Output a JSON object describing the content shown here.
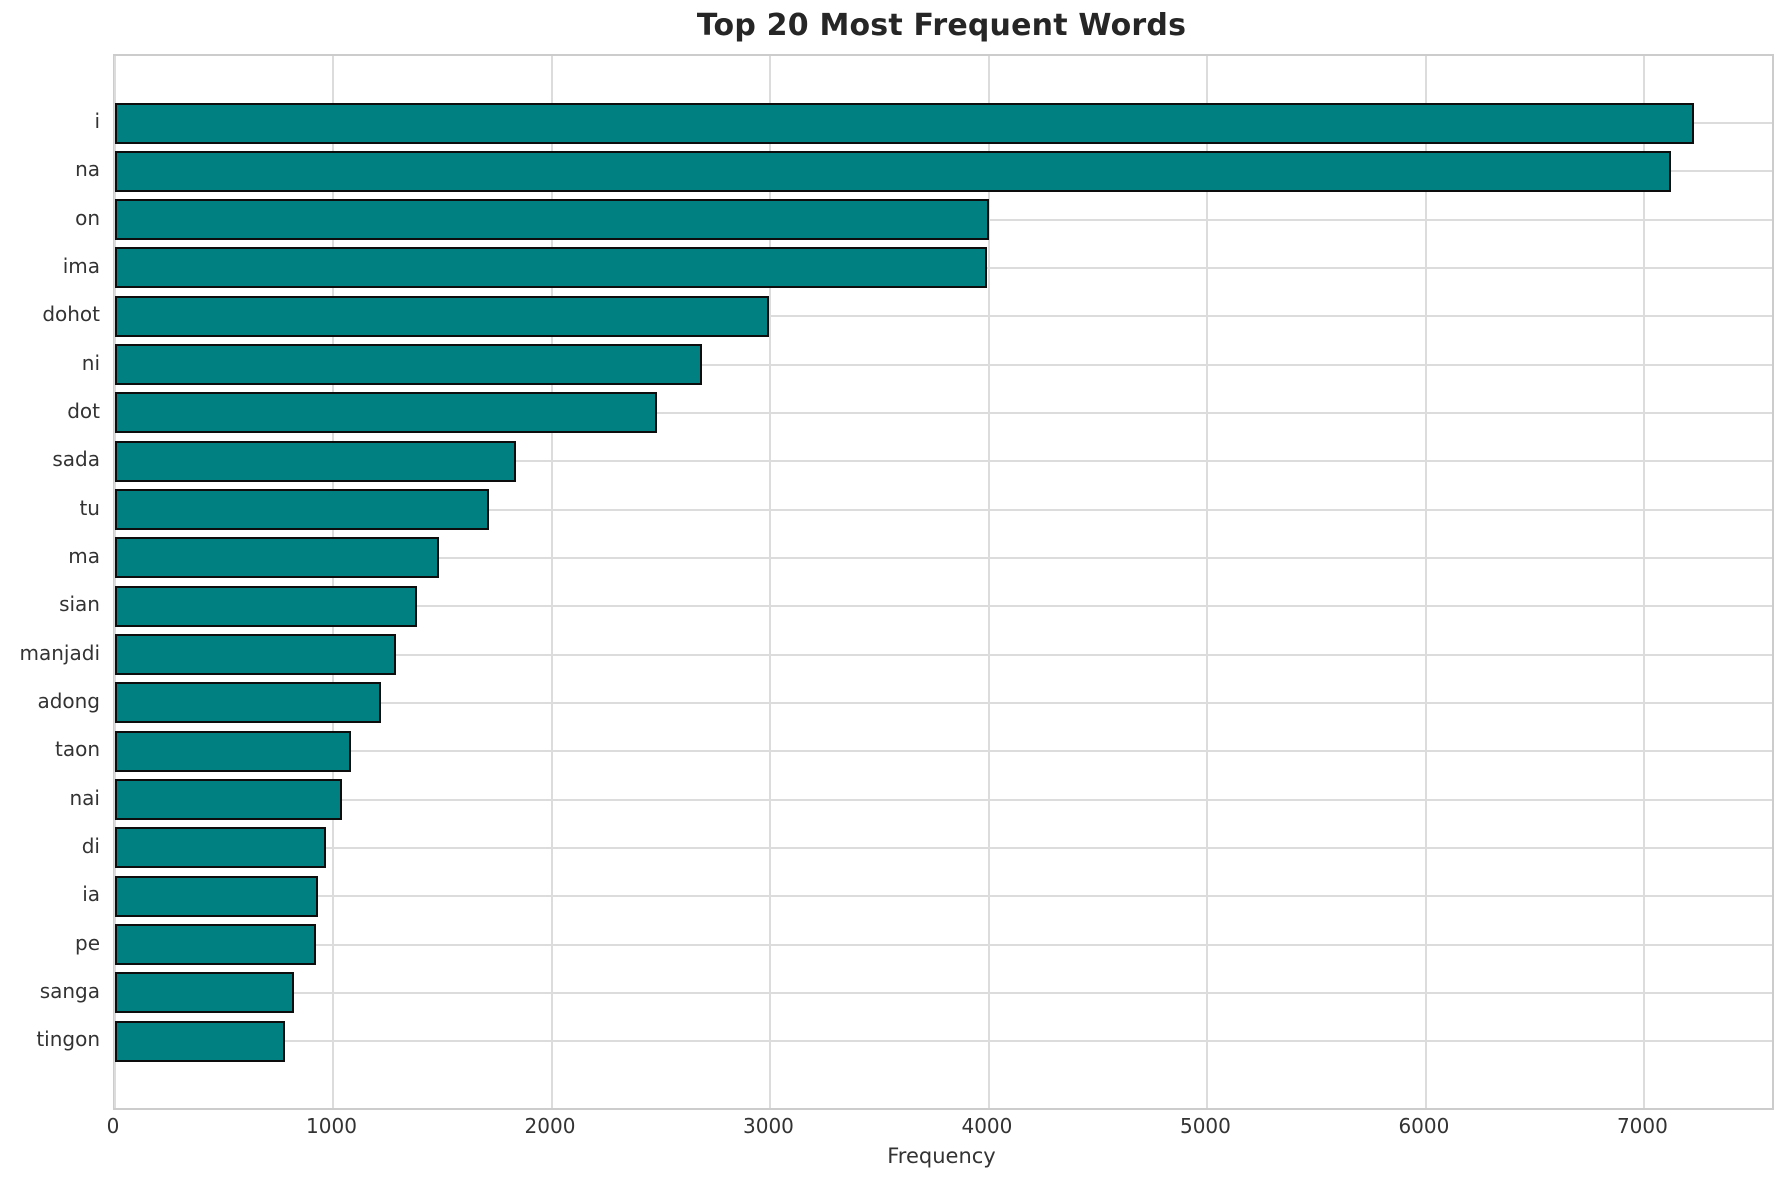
{
  "title": "Top 20 Most Frequent Words",
  "colors": {
    "bar_fill": "#008080",
    "bar_edge": "#0d0d0d",
    "grid": "#dcdcdc",
    "spine": "#cccccc",
    "title_text": "#262626",
    "tick_text": "#333333",
    "background": "#ffffff"
  },
  "chart_data": {
    "type": "bar",
    "orientation": "horizontal",
    "title": "Top 20 Most Frequent Words",
    "xlabel": "Frequency",
    "ylabel": "",
    "categories": [
      "i",
      "na",
      "on",
      "ima",
      "dohot",
      "ni",
      "dot",
      "sada",
      "tu",
      "ma",
      "sian",
      "manjadi",
      "adong",
      "taon",
      "nai",
      "di",
      "ia",
      "pe",
      "sanga",
      "tingon"
    ],
    "values": [
      7225,
      7120,
      4000,
      3990,
      2995,
      2685,
      2480,
      1835,
      1712,
      1485,
      1382,
      1286,
      1216,
      1080,
      1040,
      967,
      928,
      920,
      819,
      778
    ],
    "x_ticks": [
      0,
      1000,
      2000,
      3000,
      4000,
      5000,
      6000,
      7000
    ],
    "xlim": [
      0,
      7584
    ],
    "grid": true,
    "legend": false,
    "bar_color": "#008080"
  }
}
